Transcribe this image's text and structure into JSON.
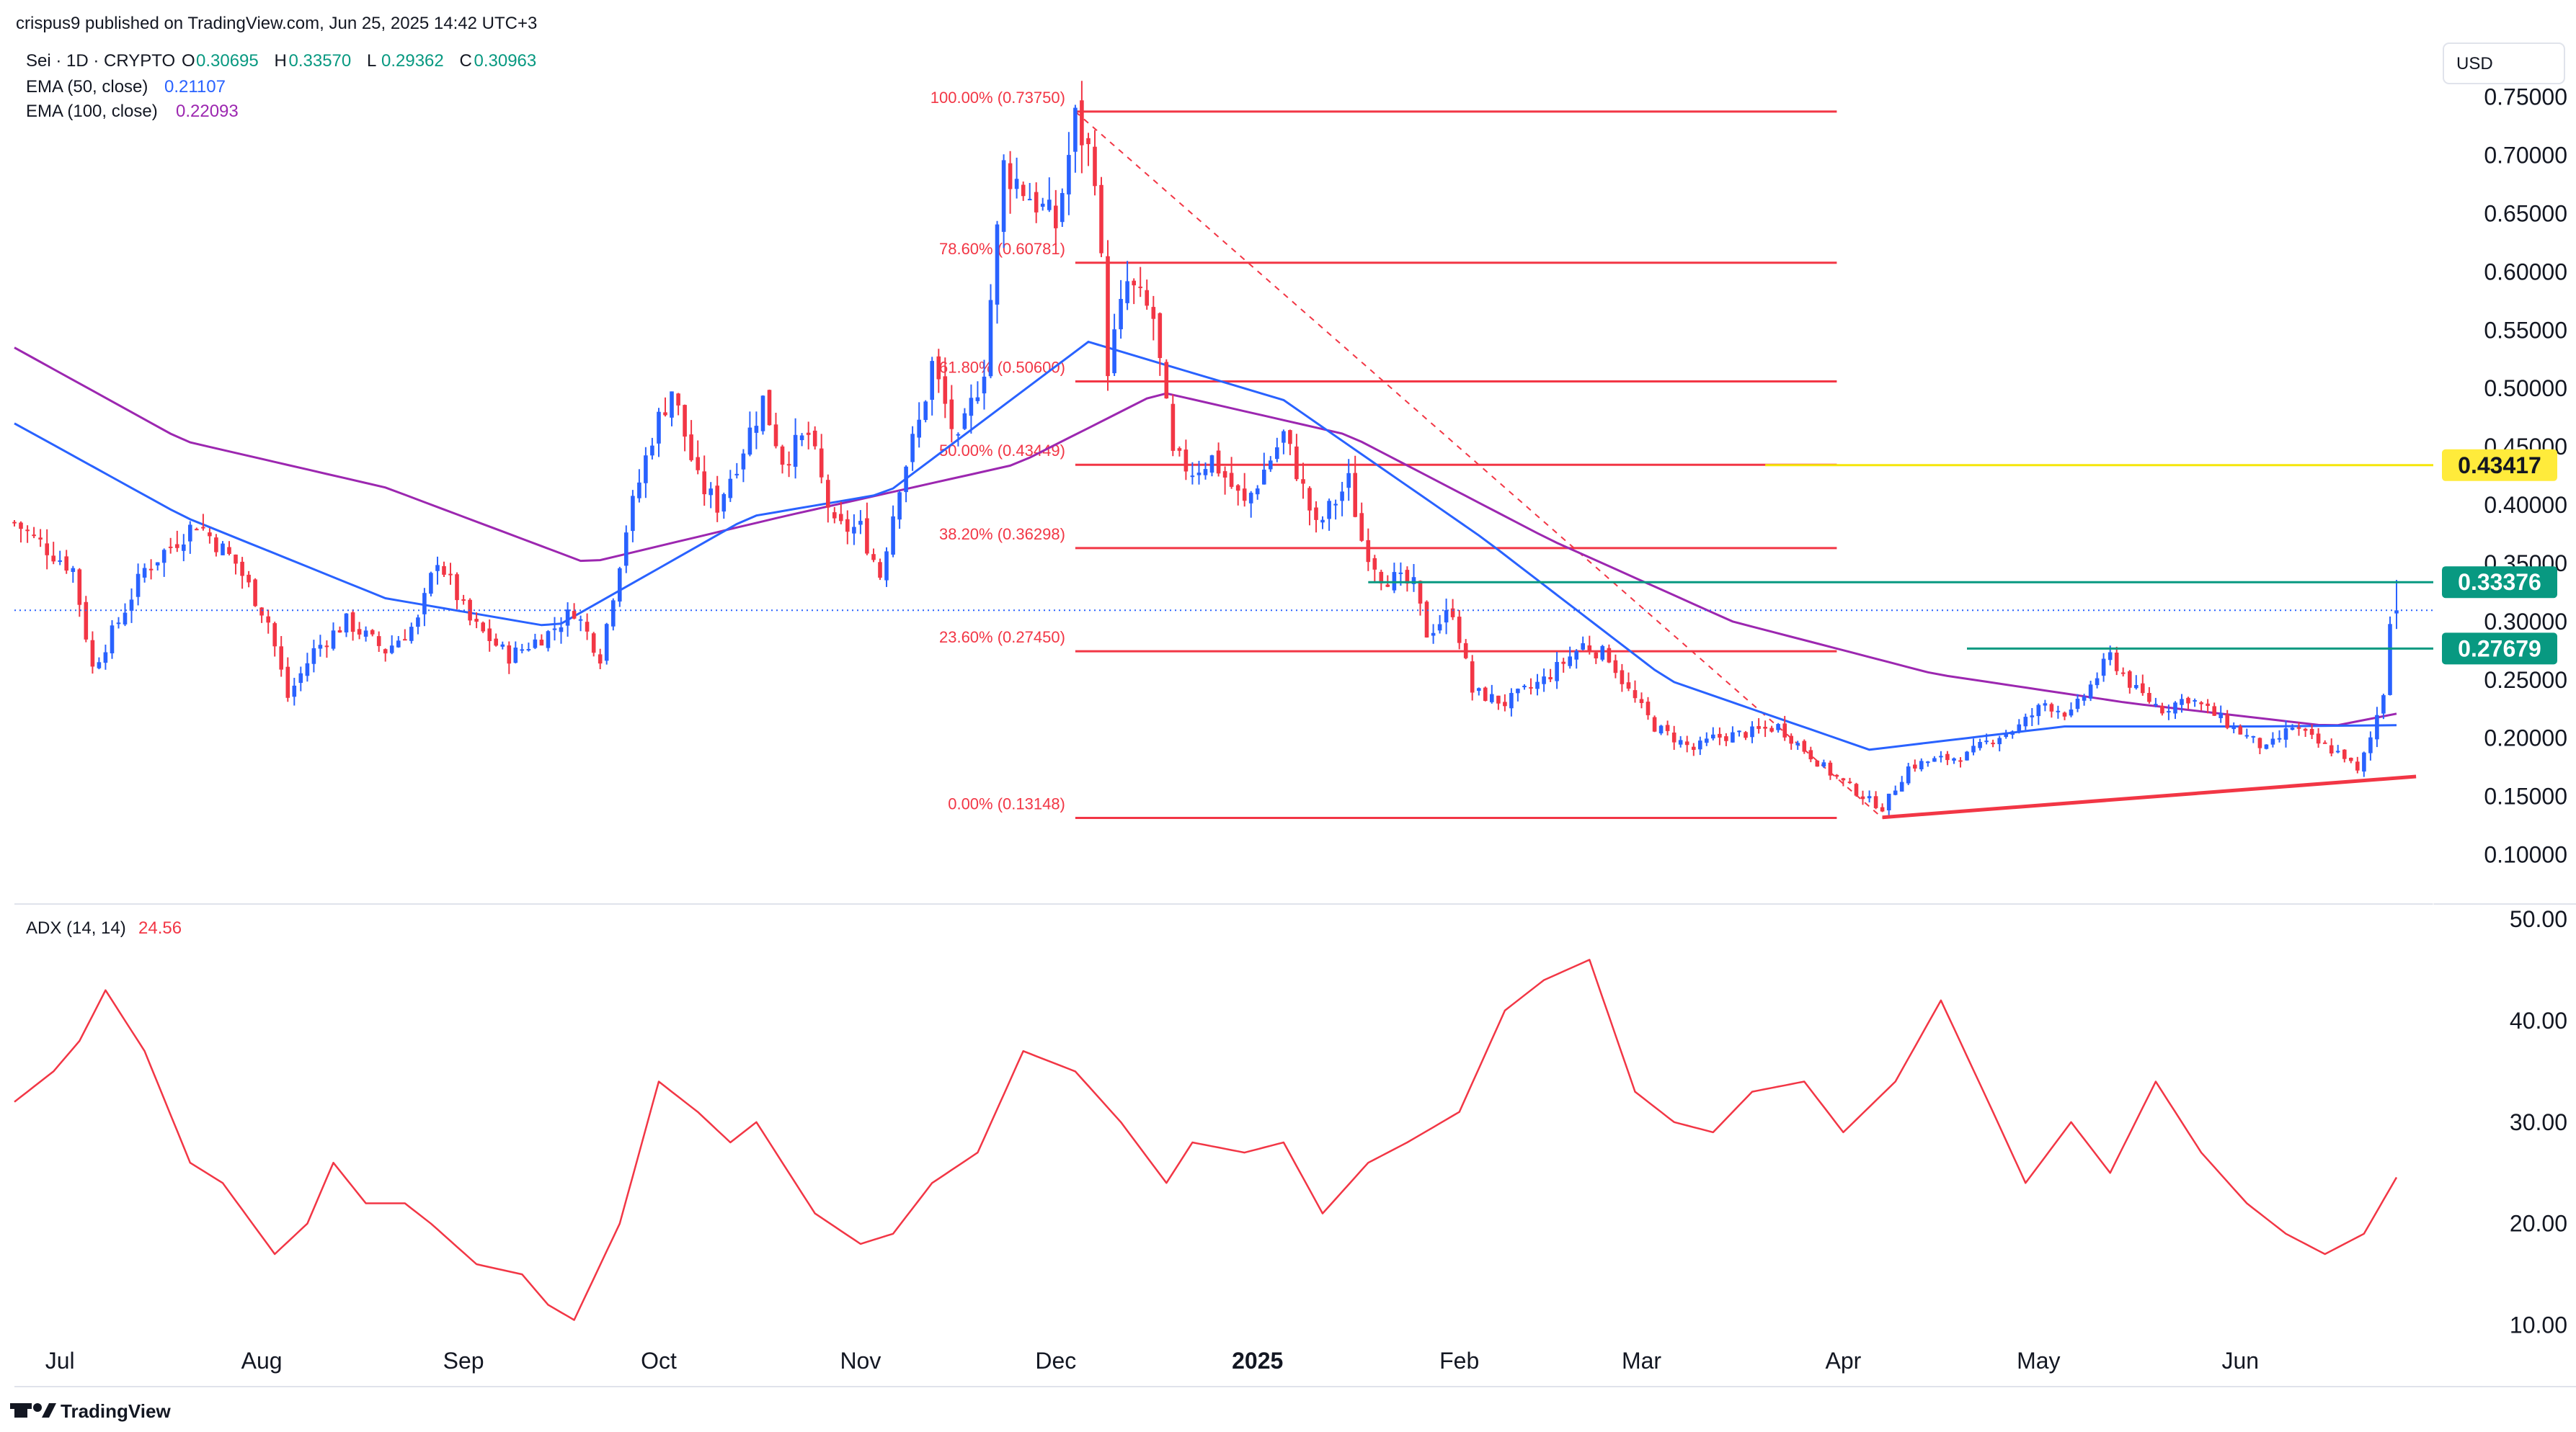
{
  "header": {
    "published": "crispus9 published on TradingView.com, Jun 25, 2025 14:42 UTC+3"
  },
  "legend": {
    "symbol": "Sei · 1D · CRYPTO",
    "ohlc": [
      {
        "k": "O",
        "v": "0.30695"
      },
      {
        "k": "H",
        "v": "0.33570"
      },
      {
        "k": "L",
        "v": "0.29362"
      },
      {
        "k": "C",
        "v": "0.30963"
      }
    ],
    "ema50_label": "EMA (50, close)",
    "ema50_value": "0.21107",
    "ema100_label": "EMA (100, close)",
    "ema100_value": "0.22093",
    "adx_label": "ADX (14, 14)",
    "adx_value": "24.56"
  },
  "currency_button": "USD",
  "logo_text": "TradingView",
  "colors": {
    "up": "#2962ff",
    "down": "#f23645",
    "ema50": "#2962ff",
    "ema100": "#9c27b0",
    "fib": "#f23645",
    "green_level": "#089981",
    "yellow_level": "#f5e60a",
    "adx": "#f23645"
  },
  "chart_data": [
    {
      "type": "candlestick",
      "title": "Sei · 1D · CRYPTO",
      "currency": "USD",
      "ylim": [
        0.07,
        0.79
      ],
      "y_ticks": [
        "0.75000",
        "0.70000",
        "0.65000",
        "0.60000",
        "0.55000",
        "0.50000",
        "0.45000",
        "0.40000",
        "0.35000",
        "0.30000",
        "0.25000",
        "0.20000",
        "0.15000",
        "0.10000"
      ],
      "x_ticks": [
        {
          "date": "2024-07-01",
          "label": "Jul"
        },
        {
          "date": "2024-08-01",
          "label": "Aug"
        },
        {
          "date": "2024-09-01",
          "label": "Sep"
        },
        {
          "date": "2024-10-01",
          "label": "Oct"
        },
        {
          "date": "2024-11-01",
          "label": "Nov"
        },
        {
          "date": "2024-12-01",
          "label": "Dec"
        },
        {
          "date": "2025-01-01",
          "label": "2025"
        },
        {
          "date": "2025-02-01",
          "label": "Feb"
        },
        {
          "date": "2025-03-01",
          "label": "Mar"
        },
        {
          "date": "2025-04-01",
          "label": "Apr"
        },
        {
          "date": "2025-05-01",
          "label": "May"
        },
        {
          "date": "2025-06-01",
          "label": "Jun"
        }
      ],
      "price_anchors": [
        {
          "date": "2024-06-24",
          "close": 0.385
        },
        {
          "date": "2024-07-03",
          "close": 0.345
        },
        {
          "date": "2024-07-06",
          "close": 0.26
        },
        {
          "date": "2024-07-10",
          "close": 0.3
        },
        {
          "date": "2024-07-14",
          "close": 0.345
        },
        {
          "date": "2024-07-22",
          "close": 0.385
        },
        {
          "date": "2024-07-28",
          "close": 0.35
        },
        {
          "date": "2024-08-02",
          "close": 0.3
        },
        {
          "date": "2024-08-05",
          "close": 0.235
        },
        {
          "date": "2024-08-09",
          "close": 0.275
        },
        {
          "date": "2024-08-14",
          "close": 0.3
        },
        {
          "date": "2024-08-20",
          "close": 0.275
        },
        {
          "date": "2024-08-25",
          "close": 0.3
        },
        {
          "date": "2024-08-28",
          "close": 0.355
        },
        {
          "date": "2024-09-02",
          "close": 0.3
        },
        {
          "date": "2024-09-08",
          "close": 0.27
        },
        {
          "date": "2024-09-14",
          "close": 0.29
        },
        {
          "date": "2024-09-18",
          "close": 0.31
        },
        {
          "date": "2024-09-22",
          "close": 0.27
        },
        {
          "date": "2024-09-26",
          "close": 0.38
        },
        {
          "date": "2024-09-30",
          "close": 0.46
        },
        {
          "date": "2024-10-03",
          "close": 0.5
        },
        {
          "date": "2024-10-07",
          "close": 0.42
        },
        {
          "date": "2024-10-10",
          "close": 0.4
        },
        {
          "date": "2024-10-14",
          "close": 0.45
        },
        {
          "date": "2024-10-17",
          "close": 0.49
        },
        {
          "date": "2024-10-20",
          "close": 0.44
        },
        {
          "date": "2024-10-24",
          "close": 0.46
        },
        {
          "date": "2024-10-28",
          "close": 0.38
        },
        {
          "date": "2024-11-01",
          "close": 0.38
        },
        {
          "date": "2024-11-04",
          "close": 0.34
        },
        {
          "date": "2024-11-07",
          "close": 0.42
        },
        {
          "date": "2024-11-10",
          "close": 0.47
        },
        {
          "date": "2024-11-12",
          "close": 0.52
        },
        {
          "date": "2024-11-16",
          "close": 0.45
        },
        {
          "date": "2024-11-20",
          "close": 0.52
        },
        {
          "date": "2024-11-23",
          "close": 0.69
        },
        {
          "date": "2024-11-28",
          "close": 0.66
        },
        {
          "date": "2024-12-01",
          "close": 0.64
        },
        {
          "date": "2024-12-04",
          "close": 0.73
        },
        {
          "date": "2024-12-07",
          "close": 0.69
        },
        {
          "date": "2024-12-09",
          "close": 0.52
        },
        {
          "date": "2024-12-12",
          "close": 0.59
        },
        {
          "date": "2024-12-16",
          "close": 0.56
        },
        {
          "date": "2024-12-19",
          "close": 0.44
        },
        {
          "date": "2024-12-22",
          "close": 0.43
        },
        {
          "date": "2024-12-25",
          "close": 0.44
        },
        {
          "date": "2024-12-30",
          "close": 0.4
        },
        {
          "date": "2025-01-05",
          "close": 0.46
        },
        {
          "date": "2025-01-07",
          "close": 0.43
        },
        {
          "date": "2025-01-10",
          "close": 0.38
        },
        {
          "date": "2025-01-15",
          "close": 0.42
        },
        {
          "date": "2025-01-17",
          "close": 0.37
        },
        {
          "date": "2025-01-20",
          "close": 0.34
        },
        {
          "date": "2025-01-25",
          "close": 0.33
        },
        {
          "date": "2025-01-27",
          "close": 0.29
        },
        {
          "date": "2025-01-31",
          "close": 0.31
        },
        {
          "date": "2025-02-03",
          "close": 0.24
        },
        {
          "date": "2025-02-08",
          "close": 0.23
        },
        {
          "date": "2025-02-14",
          "close": 0.25
        },
        {
          "date": "2025-02-20",
          "close": 0.28
        },
        {
          "date": "2025-02-24",
          "close": 0.27
        },
        {
          "date": "2025-02-27",
          "close": 0.24
        },
        {
          "date": "2025-03-03",
          "close": 0.21
        },
        {
          "date": "2025-03-09",
          "close": 0.19
        },
        {
          "date": "2025-03-12",
          "close": 0.2
        },
        {
          "date": "2025-03-18",
          "close": 0.205
        },
        {
          "date": "2025-03-22",
          "close": 0.21
        },
        {
          "date": "2025-03-26",
          "close": 0.19
        },
        {
          "date": "2025-03-30",
          "close": 0.17
        },
        {
          "date": "2025-04-04",
          "close": 0.15
        },
        {
          "date": "2025-04-07",
          "close": 0.14
        },
        {
          "date": "2025-04-11",
          "close": 0.175
        },
        {
          "date": "2025-04-14",
          "close": 0.18
        },
        {
          "date": "2025-04-20",
          "close": 0.185
        },
        {
          "date": "2025-04-24",
          "close": 0.2
        },
        {
          "date": "2025-04-28",
          "close": 0.21
        },
        {
          "date": "2025-05-02",
          "close": 0.23
        },
        {
          "date": "2025-05-06",
          "close": 0.22
        },
        {
          "date": "2025-05-09",
          "close": 0.245
        },
        {
          "date": "2025-05-12",
          "close": 0.27
        },
        {
          "date": "2025-05-16",
          "close": 0.24
        },
        {
          "date": "2025-05-20",
          "close": 0.225
        },
        {
          "date": "2025-05-24",
          "close": 0.235
        },
        {
          "date": "2025-05-28",
          "close": 0.22
        },
        {
          "date": "2025-06-01",
          "close": 0.205
        },
        {
          "date": "2025-06-05",
          "close": 0.19
        },
        {
          "date": "2025-06-09",
          "close": 0.21
        },
        {
          "date": "2025-06-13",
          "close": 0.195
        },
        {
          "date": "2025-06-17",
          "close": 0.185
        },
        {
          "date": "2025-06-19",
          "close": 0.17
        },
        {
          "date": "2025-06-21",
          "close": 0.2
        },
        {
          "date": "2025-06-23",
          "close": 0.24
        },
        {
          "date": "2025-06-24",
          "close": 0.305
        },
        {
          "date": "2025-06-25",
          "close": 0.30963
        }
      ],
      "ema100_anchors": [
        {
          "date": "2024-06-24",
          "value": 0.535
        },
        {
          "date": "2024-07-20",
          "value": 0.455
        },
        {
          "date": "2024-08-20",
          "value": 0.415
        },
        {
          "date": "2024-09-20",
          "value": 0.35
        },
        {
          "date": "2024-10-20",
          "value": 0.39
        },
        {
          "date": "2024-11-25",
          "value": 0.435
        },
        {
          "date": "2024-12-17",
          "value": 0.497
        },
        {
          "date": "2025-01-15",
          "value": 0.46
        },
        {
          "date": "2025-02-15",
          "value": 0.37
        },
        {
          "date": "2025-03-15",
          "value": 0.3
        },
        {
          "date": "2025-04-15",
          "value": 0.255
        },
        {
          "date": "2025-05-15",
          "value": 0.23
        },
        {
          "date": "2025-06-15",
          "value": 0.21
        },
        {
          "date": "2025-06-25",
          "value": 0.22093
        }
      ],
      "ema50_anchors": [
        {
          "date": "2024-06-24",
          "value": 0.47
        },
        {
          "date": "2024-07-20",
          "value": 0.39
        },
        {
          "date": "2024-08-20",
          "value": 0.32
        },
        {
          "date": "2024-09-15",
          "value": 0.295
        },
        {
          "date": "2024-10-15",
          "value": 0.39
        },
        {
          "date": "2024-11-05",
          "value": 0.41
        },
        {
          "date": "2024-12-06",
          "value": 0.54
        },
        {
          "date": "2025-01-05",
          "value": 0.49
        },
        {
          "date": "2025-02-05",
          "value": 0.37
        },
        {
          "date": "2025-03-05",
          "value": 0.25
        },
        {
          "date": "2025-04-05",
          "value": 0.19
        },
        {
          "date": "2025-05-05",
          "value": 0.21
        },
        {
          "date": "2025-06-05",
          "value": 0.21
        },
        {
          "date": "2025-06-25",
          "value": 0.21107
        }
      ],
      "fibonacci": {
        "start_date": "2024-12-04",
        "end_date": "2025-03-31",
        "levels": [
          {
            "label": "100.00% (0.73750)",
            "value": 0.7375
          },
          {
            "label": "78.60% (0.60781)",
            "value": 0.60781
          },
          {
            "label": "61.80% (0.50600)",
            "value": 0.506
          },
          {
            "label": "50.00% (0.43449)",
            "value": 0.43449
          },
          {
            "label": "38.20% (0.36298)",
            "value": 0.36298
          },
          {
            "label": "23.60% (0.27450)",
            "value": 0.2745
          },
          {
            "label": "0.00% (0.13148)",
            "value": 0.13148
          }
        ],
        "trend_from": {
          "date": "2024-12-04",
          "value": 0.7375
        },
        "trend_to": {
          "date": "2025-04-07",
          "value": 0.13148
        }
      },
      "support_trendline": {
        "from": {
          "date": "2025-04-07",
          "value": 0.132
        },
        "to": {
          "date": "2025-06-28",
          "value": 0.167
        }
      },
      "horizontal_lines": [
        {
          "value": 0.43417,
          "color": "yellow",
          "from": "2025-03-20",
          "label": "0.43417"
        },
        {
          "value": 0.33376,
          "color": "green",
          "from": "2025-01-18",
          "label": "0.33376"
        },
        {
          "value": 0.27679,
          "color": "green",
          "from": "2025-04-20",
          "label": "0.27679"
        }
      ],
      "last_price": 0.30963
    },
    {
      "type": "line",
      "title": "ADX (14, 14)",
      "ylim": [
        5,
        51
      ],
      "y_ticks": [
        "50.00",
        "40.00",
        "30.00",
        "20.00",
        "10.00"
      ],
      "anchors": [
        {
          "date": "2024-06-24",
          "value": 32
        },
        {
          "date": "2024-06-30",
          "value": 35
        },
        {
          "date": "2024-07-04",
          "value": 38
        },
        {
          "date": "2024-07-08",
          "value": 43
        },
        {
          "date": "2024-07-14",
          "value": 37
        },
        {
          "date": "2024-07-21",
          "value": 26
        },
        {
          "date": "2024-07-26",
          "value": 24
        },
        {
          "date": "2024-08-03",
          "value": 17
        },
        {
          "date": "2024-08-08",
          "value": 20
        },
        {
          "date": "2024-08-12",
          "value": 26
        },
        {
          "date": "2024-08-17",
          "value": 22
        },
        {
          "date": "2024-08-23",
          "value": 22
        },
        {
          "date": "2024-08-27",
          "value": 20
        },
        {
          "date": "2024-09-03",
          "value": 16
        },
        {
          "date": "2024-09-10",
          "value": 15
        },
        {
          "date": "2024-09-14",
          "value": 12
        },
        {
          "date": "2024-09-18",
          "value": 10.5
        },
        {
          "date": "2024-09-25",
          "value": 20
        },
        {
          "date": "2024-10-01",
          "value": 34
        },
        {
          "date": "2024-10-07",
          "value": 31
        },
        {
          "date": "2024-10-12",
          "value": 28
        },
        {
          "date": "2024-10-16",
          "value": 30
        },
        {
          "date": "2024-10-25",
          "value": 21
        },
        {
          "date": "2024-11-01",
          "value": 18
        },
        {
          "date": "2024-11-06",
          "value": 19
        },
        {
          "date": "2024-11-12",
          "value": 24
        },
        {
          "date": "2024-11-19",
          "value": 27
        },
        {
          "date": "2024-11-26",
          "value": 37
        },
        {
          "date": "2024-12-04",
          "value": 35
        },
        {
          "date": "2024-12-11",
          "value": 30
        },
        {
          "date": "2024-12-18",
          "value": 24
        },
        {
          "date": "2024-12-22",
          "value": 28
        },
        {
          "date": "2024-12-30",
          "value": 27
        },
        {
          "date": "2025-01-05",
          "value": 28
        },
        {
          "date": "2025-01-11",
          "value": 21
        },
        {
          "date": "2025-01-18",
          "value": 26
        },
        {
          "date": "2025-01-24",
          "value": 28
        },
        {
          "date": "2025-02-01",
          "value": 31
        },
        {
          "date": "2025-02-08",
          "value": 41
        },
        {
          "date": "2025-02-14",
          "value": 44
        },
        {
          "date": "2025-02-21",
          "value": 46
        },
        {
          "date": "2025-02-28",
          "value": 33
        },
        {
          "date": "2025-03-06",
          "value": 30
        },
        {
          "date": "2025-03-12",
          "value": 29
        },
        {
          "date": "2025-03-18",
          "value": 33
        },
        {
          "date": "2025-03-26",
          "value": 34
        },
        {
          "date": "2025-04-01",
          "value": 29
        },
        {
          "date": "2025-04-09",
          "value": 34
        },
        {
          "date": "2025-04-16",
          "value": 42
        },
        {
          "date": "2025-04-24",
          "value": 31
        },
        {
          "date": "2025-04-29",
          "value": 24
        },
        {
          "date": "2025-05-06",
          "value": 30
        },
        {
          "date": "2025-05-12",
          "value": 25
        },
        {
          "date": "2025-05-19",
          "value": 34
        },
        {
          "date": "2025-05-26",
          "value": 27
        },
        {
          "date": "2025-06-02",
          "value": 22
        },
        {
          "date": "2025-06-08",
          "value": 19
        },
        {
          "date": "2025-06-14",
          "value": 17
        },
        {
          "date": "2025-06-20",
          "value": 19
        },
        {
          "date": "2025-06-25",
          "value": 24.56
        }
      ]
    }
  ]
}
